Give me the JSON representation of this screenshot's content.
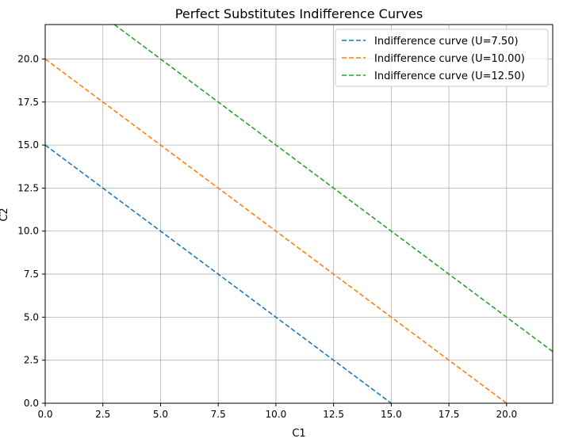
{
  "chart_data": {
    "type": "line",
    "title": "Perfect Substitutes Indifference Curves",
    "xlabel": "C1",
    "ylabel": "C2",
    "xlim": [
      0,
      22
    ],
    "ylim": [
      0,
      22
    ],
    "xticks": [
      0,
      2.5,
      5,
      7.5,
      10,
      12.5,
      15,
      17.5,
      20
    ],
    "xtick_labels": [
      "0.0",
      "2.5",
      "5.0",
      "7.5",
      "10.0",
      "12.5",
      "15.0",
      "17.5",
      "20.0"
    ],
    "yticks": [
      0,
      2.5,
      5,
      7.5,
      10,
      12.5,
      15,
      17.5,
      20
    ],
    "ytick_labels": [
      "0.0",
      "2.5",
      "5.0",
      "7.5",
      "10.0",
      "12.5",
      "15.0",
      "17.5",
      "20.0"
    ],
    "grid": true,
    "legend_position": "top-right",
    "series": [
      {
        "name": "Indifference curve (U=7.50)",
        "color": "#1f77b4",
        "line_style": "dashed",
        "x": [
          0,
          15
        ],
        "y": [
          15,
          0
        ]
      },
      {
        "name": "Indifference curve (U=10.00)",
        "color": "#ff7f0e",
        "line_style": "dashed",
        "x": [
          0,
          20
        ],
        "y": [
          20,
          0
        ]
      },
      {
        "name": "Indifference curve (U=12.50)",
        "color": "#2ca02c",
        "line_style": "dashed",
        "x": [
          3,
          22
        ],
        "y": [
          22,
          3
        ]
      }
    ]
  }
}
